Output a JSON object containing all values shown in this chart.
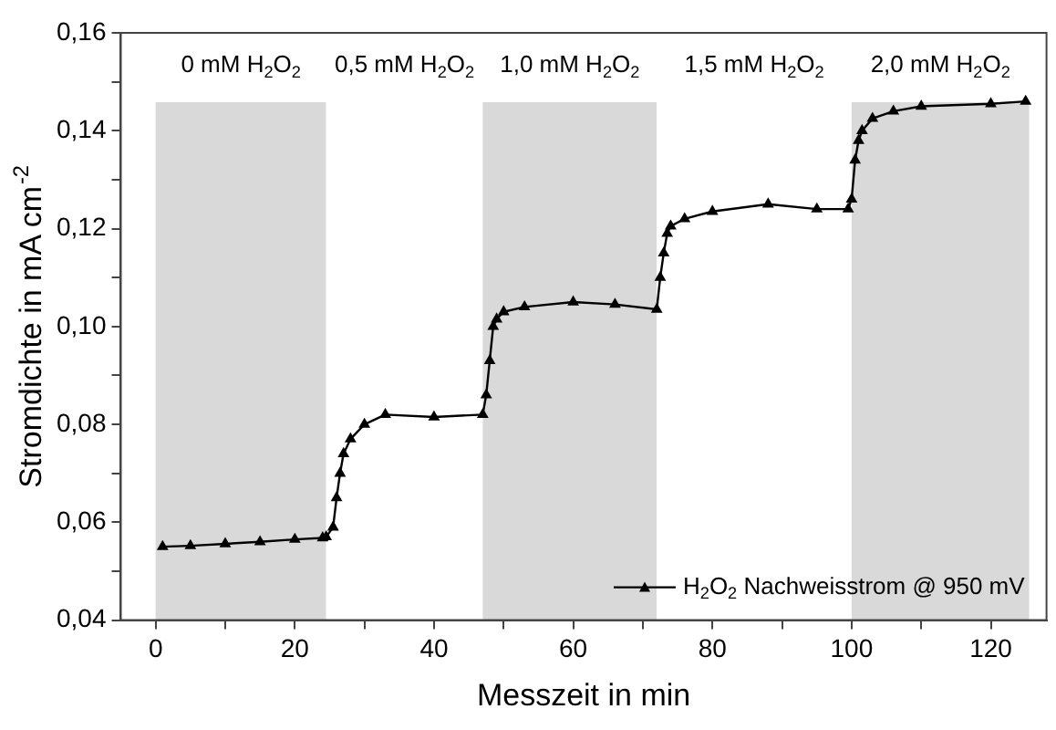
{
  "chart_data": {
    "type": "line",
    "xlabel": "Messzeit in min",
    "ylabel": "Stromdichte in mA cm$^{-2}$",
    "xlim": [
      -5,
      128
    ],
    "ylim": [
      0.04,
      0.16
    ],
    "xticks": [
      0,
      {
        "value": 10,
        "label": null
      },
      20,
      {
        "value": 30,
        "label": null
      },
      40,
      {
        "value": 50,
        "label": null
      },
      60,
      {
        "value": 70,
        "label": null
      },
      80,
      {
        "value": 90,
        "label": null
      },
      100,
      {
        "value": 110,
        "label": null
      },
      120
    ],
    "yticks": [
      {
        "value": 0.04,
        "label": "0,04"
      },
      {
        "value": 0.05,
        "label": null
      },
      {
        "value": 0.06,
        "label": "0,06"
      },
      {
        "value": 0.07,
        "label": null
      },
      {
        "value": 0.08,
        "label": "0,08"
      },
      {
        "value": 0.09,
        "label": null
      },
      {
        "value": 0.1,
        "label": "0,10"
      },
      {
        "value": 0.11,
        "label": null
      },
      {
        "value": 0.12,
        "label": "0,12"
      },
      {
        "value": 0.13,
        "label": null
      },
      {
        "value": 0.14,
        "label": "0,14"
      },
      {
        "value": 0.15,
        "label": null
      },
      {
        "value": 0.16,
        "label": "0,16"
      }
    ],
    "grid": false,
    "legend": "bottom right",
    "marker": "triangle",
    "line_style": "solid",
    "bands": [
      {
        "axis": "x",
        "from": 0,
        "to": 24.5,
        "label": "0 mM H$_{2}$O$_{2}$",
        "color": "#d9d9d9"
      },
      {
        "axis": "x",
        "from": 24.5,
        "to": 47,
        "label": "0,5 mM H$_{2}$O$_{2}$",
        "color": "#ffffff"
      },
      {
        "axis": "x",
        "from": 47,
        "to": 72,
        "label": "1,0 mM H$_{2}$O$_{2}$",
        "color": "#d9d9d9"
      },
      {
        "axis": "x",
        "from": 72,
        "to": 100,
        "label": "1,5 mM H$_{2}$O$_{2}$",
        "color": "#ffffff"
      },
      {
        "axis": "x",
        "from": 100,
        "to": 125.5,
        "label": "2,0 mM H$_{2}$O$_{2}$",
        "color": "#d9d9d9"
      }
    ],
    "series": [
      {
        "name": "H$_{2}$O$_{2}$ Nachweisstrom @ 950 mV",
        "color": "#000000",
        "x": [
          1,
          5,
          10,
          15,
          20,
          24,
          24.5,
          25.5,
          26,
          26.5,
          27,
          28,
          30,
          33,
          40,
          47,
          47.5,
          48,
          48.5,
          49,
          50,
          53,
          60,
          66,
          72,
          72.5,
          73,
          73.5,
          74,
          76,
          80,
          88,
          95,
          99.5,
          100,
          100.5,
          101,
          101.5,
          103,
          106,
          110,
          120,
          125
        ],
        "values": [
          0.055,
          0.0552,
          0.0556,
          0.056,
          0.0565,
          0.0568,
          0.057,
          0.059,
          0.065,
          0.07,
          0.074,
          0.077,
          0.08,
          0.082,
          0.0815,
          0.082,
          0.086,
          0.093,
          0.1,
          0.1015,
          0.103,
          0.104,
          0.105,
          0.1045,
          0.1035,
          0.11,
          0.115,
          0.119,
          0.1205,
          0.122,
          0.1235,
          0.125,
          0.124,
          0.124,
          0.126,
          0.134,
          0.138,
          0.14,
          0.1425,
          0.144,
          0.145,
          0.1455,
          0.146
        ]
      }
    ]
  }
}
